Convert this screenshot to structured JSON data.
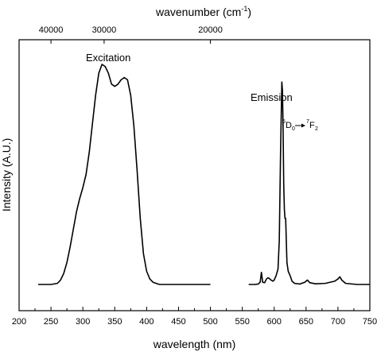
{
  "chart_data": {
    "type": "line",
    "title": "",
    "xlabel": "wavelength (nm)",
    "ylabel": "Intensity (A.U.)",
    "top_axis_label": "wavenumber (cm",
    "top_axis_label_sup": "-1",
    "top_axis_label_close": ")",
    "xlim": [
      200,
      750
    ],
    "ylim": [
      0,
      1.05
    ],
    "grid": false,
    "x_ticks": [
      200,
      250,
      300,
      350,
      400,
      450,
      500,
      550,
      600,
      650,
      700,
      750
    ],
    "x_tick_labels": [
      "200",
      "250",
      "300",
      "350",
      "400",
      "450",
      "500",
      "550",
      "600",
      "650",
      "700",
      "750"
    ],
    "top_ticks_wavenumber": [
      40000,
      30000,
      20000
    ],
    "top_tick_labels": [
      "40000",
      "30000",
      "20000"
    ],
    "annotations": {
      "excitation": "Excitation",
      "emission": "Emission",
      "transition": {
        "upper_sup": "5",
        "upper": "D",
        "upper_sub": "0",
        "lower_sup": "7",
        "lower": "F",
        "lower_sub": "2"
      }
    },
    "series": [
      {
        "label": "Excitation",
        "x": [
          230,
          250,
          260,
          265,
          270,
          275,
          280,
          285,
          290,
          295,
          300,
          305,
          310,
          315,
          320,
          325,
          330,
          335,
          340,
          345,
          350,
          355,
          360,
          365,
          370,
          375,
          380,
          385,
          390,
          395,
          400,
          405,
          410,
          420,
          440,
          470,
          500
        ],
        "y": [
          0.0,
          0.0,
          0.005,
          0.02,
          0.05,
          0.1,
          0.17,
          0.25,
          0.33,
          0.39,
          0.44,
          0.5,
          0.6,
          0.73,
          0.86,
          0.96,
          1.0,
          0.99,
          0.96,
          0.91,
          0.9,
          0.91,
          0.93,
          0.94,
          0.93,
          0.86,
          0.72,
          0.52,
          0.3,
          0.14,
          0.06,
          0.025,
          0.01,
          0.0,
          0.0,
          0.0,
          0.0
        ]
      },
      {
        "label": "Emission",
        "x": [
          560,
          570,
          575,
          578,
          580,
          582,
          585,
          588,
          590,
          592,
          595,
          598,
          600,
          603,
          606,
          608,
          610,
          612,
          613,
          614,
          615,
          616,
          617,
          618,
          619,
          620,
          622,
          625,
          628,
          632,
          640,
          648,
          652,
          656,
          665,
          680,
          695,
          700,
          703,
          706,
          712,
          730,
          750
        ],
        "y": [
          0.0,
          0.0,
          0.002,
          0.01,
          0.055,
          0.01,
          0.008,
          0.025,
          0.03,
          0.028,
          0.02,
          0.015,
          0.02,
          0.04,
          0.07,
          0.2,
          0.6,
          0.92,
          0.88,
          0.7,
          0.45,
          0.34,
          0.3,
          0.3,
          0.2,
          0.1,
          0.06,
          0.04,
          0.015,
          0.005,
          0.002,
          0.01,
          0.02,
          0.008,
          0.003,
          0.005,
          0.015,
          0.025,
          0.035,
          0.02,
          0.005,
          0.0,
          0.0
        ]
      }
    ]
  }
}
